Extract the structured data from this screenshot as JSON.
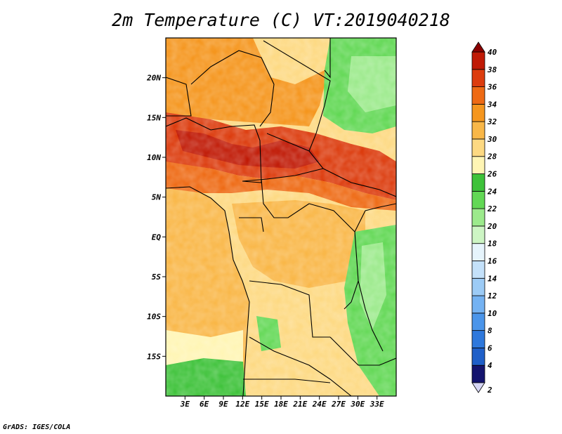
{
  "title": "2m Temperature (C) VT:2019040218",
  "credit": "GrADS: IGES/COLA",
  "map": {
    "lon_range": [
      0,
      36
    ],
    "lat_range": [
      -20,
      25
    ],
    "lat_ticks": [
      {
        "value": 20,
        "label": "20N"
      },
      {
        "value": 15,
        "label": "15N"
      },
      {
        "value": 10,
        "label": "10N"
      },
      {
        "value": 5,
        "label": "5N"
      },
      {
        "value": 0,
        "label": "EQ"
      },
      {
        "value": -5,
        "label": "5S"
      },
      {
        "value": -10,
        "label": "10S"
      },
      {
        "value": -15,
        "label": "15S"
      }
    ],
    "lon_ticks": [
      {
        "value": 3,
        "label": "3E"
      },
      {
        "value": 6,
        "label": "6E"
      },
      {
        "value": 9,
        "label": "9E"
      },
      {
        "value": 12,
        "label": "12E"
      },
      {
        "value": 15,
        "label": "15E"
      },
      {
        "value": 18,
        "label": "18E"
      },
      {
        "value": 21,
        "label": "21E"
      },
      {
        "value": 24,
        "label": "24E"
      },
      {
        "value": 27,
        "label": "27E"
      },
      {
        "value": 30,
        "label": "30E"
      },
      {
        "value": 33,
        "label": "33E"
      }
    ]
  },
  "colorbar": {
    "levels": [
      {
        "label": "2",
        "color": "#d6d6f5"
      },
      {
        "label": "4",
        "color": "#14146e"
      },
      {
        "label": "6",
        "color": "#1f5fc8"
      },
      {
        "label": "8",
        "color": "#2e78dc"
      },
      {
        "label": "10",
        "color": "#4b95ea"
      },
      {
        "label": "12",
        "color": "#74b2f2"
      },
      {
        "label": "14",
        "color": "#9ccbf6"
      },
      {
        "label": "16",
        "color": "#c4e1fa"
      },
      {
        "label": "18",
        "color": "#e6f4fc"
      },
      {
        "label": "20",
        "color": "#cdf5c4"
      },
      {
        "label": "22",
        "color": "#9cea8c"
      },
      {
        "label": "24",
        "color": "#62d855"
      },
      {
        "label": "26",
        "color": "#3ec23a"
      },
      {
        "label": "28",
        "color": "#fff5b4"
      },
      {
        "label": "30",
        "color": "#fdd982"
      },
      {
        "label": "32",
        "color": "#f9b748"
      },
      {
        "label": "34",
        "color": "#f5961e"
      },
      {
        "label": "36",
        "color": "#ee6a14"
      },
      {
        "label": "38",
        "color": "#dc3c0e"
      },
      {
        "label": "40",
        "color": "#c01a06"
      }
    ],
    "top_arrow_color": "#8a0000"
  },
  "regions": [
    {
      "id": "ocean",
      "color": "#f9b748"
    },
    {
      "id": "sahel-hot",
      "color": "#dc3c0e"
    },
    {
      "id": "sahara-warm",
      "color": "#f5961e"
    },
    {
      "id": "east-green",
      "color": "#62d855"
    },
    {
      "id": "south-pale",
      "color": "#fdd982"
    }
  ]
}
